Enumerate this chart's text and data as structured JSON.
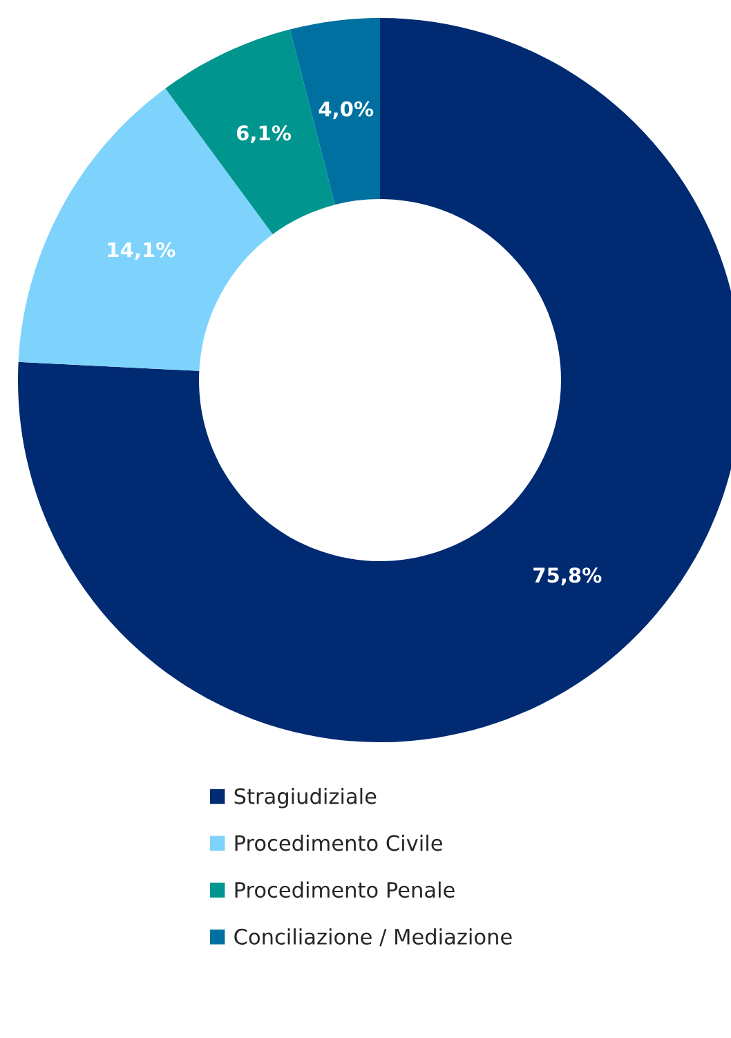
{
  "chart_data": {
    "type": "donut",
    "categories": [
      "Stragiudiziale",
      "Procedimento Civile",
      "Procedimento Penale",
      "Conciliazione / Mediazione"
    ],
    "values": [
      75.8,
      14.1,
      6.1,
      4.0
    ],
    "colors": [
      "#002a72",
      "#7dd3fc",
      "#00968f",
      "#0070a0"
    ],
    "value_labels": [
      "75,8%",
      "14,1%",
      "6,1%",
      "4,0%"
    ],
    "legend": "bottom"
  }
}
